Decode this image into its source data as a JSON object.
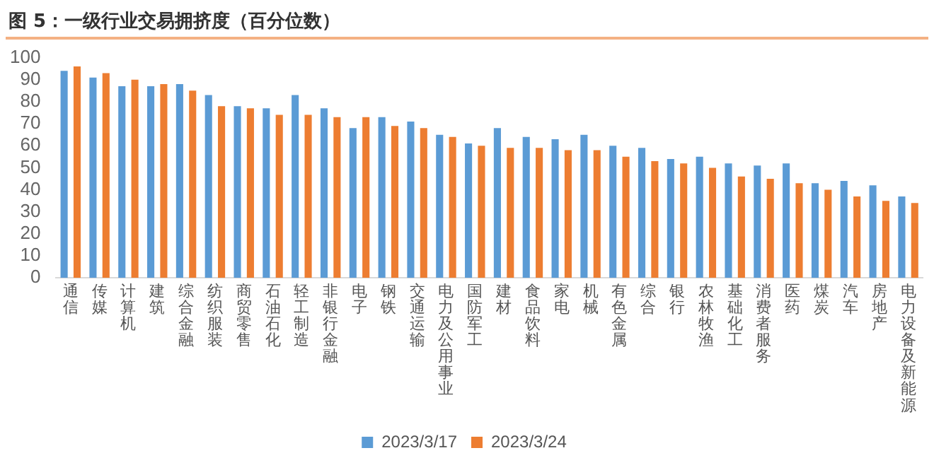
{
  "chart_data": {
    "type": "bar",
    "title": "图 5：一级行业交易拥挤度（百分位数）",
    "categories": [
      "通信",
      "传媒",
      "计算机",
      "建筑",
      "综合金融",
      "纺织服装",
      "商贸零售",
      "石油石化",
      "轻工制造",
      "非银行金融",
      "电子",
      "钢铁",
      "交通运输",
      "电力及公用事业",
      "国防军工",
      "建材",
      "食品饮料",
      "家电",
      "机械",
      "有色金属",
      "综合",
      "银行",
      "农林牧渔",
      "基础化工",
      "消费者服务",
      "医药",
      "煤炭",
      "汽车",
      "房地产",
      "电力设备及新能源"
    ],
    "series": [
      {
        "name": "2023/3/17",
        "color": "#5b9bd5",
        "values": [
          94,
          91,
          87,
          87,
          88,
          83,
          78,
          77,
          83,
          77,
          68,
          73,
          71,
          65,
          61,
          68,
          64,
          63,
          65,
          60,
          59,
          54,
          55,
          52,
          51,
          52,
          43,
          44,
          42,
          37
        ]
      },
      {
        "name": "2023/3/24",
        "color": "#ed7d31",
        "values": [
          96,
          93,
          90,
          88,
          85,
          78,
          77,
          74,
          74,
          73,
          73,
          69,
          68,
          64,
          60,
          59,
          59,
          58,
          58,
          55,
          53,
          52,
          50,
          46,
          45,
          43,
          40,
          37,
          35,
          34
        ]
      }
    ],
    "ylim": [
      0,
      100
    ],
    "yticks": [
      0,
      10,
      20,
      30,
      40,
      50,
      60,
      70,
      80,
      90,
      100
    ],
    "grid": false,
    "legend": "bottom"
  }
}
